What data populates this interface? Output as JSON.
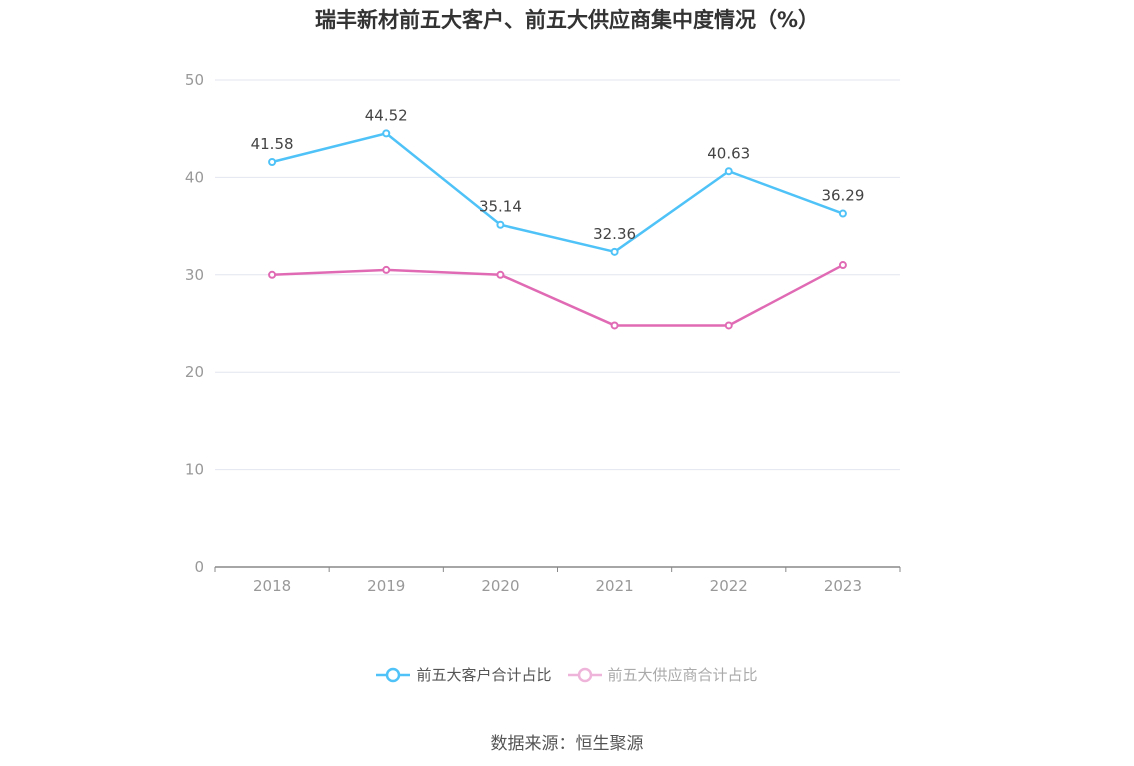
{
  "chart_data": {
    "type": "line",
    "title": "瑞丰新材前五大客户、前五大供应商集中度情况（%）",
    "categories": [
      "2018",
      "2019",
      "2020",
      "2021",
      "2022",
      "2023"
    ],
    "ylim": [
      0,
      50
    ],
    "yticks": [
      0,
      10,
      20,
      30,
      40,
      50
    ],
    "grid": true,
    "legend_position": "bottom",
    "series": [
      {
        "name": "前五大客户合计占比",
        "color": "#4fc3f7",
        "values": [
          41.58,
          44.52,
          35.14,
          32.36,
          40.63,
          36.29
        ],
        "labels": [
          "41.58",
          "44.52",
          "35.14",
          "32.36",
          "40.63",
          "36.29"
        ],
        "legend_active": true
      },
      {
        "name": "前五大供应商合计占比",
        "color": "#e06bb4",
        "values": [
          30.0,
          30.5,
          30.0,
          24.8,
          24.8,
          31.0
        ],
        "legend_active": false
      }
    ]
  },
  "source": "数据来源：恒生聚源"
}
